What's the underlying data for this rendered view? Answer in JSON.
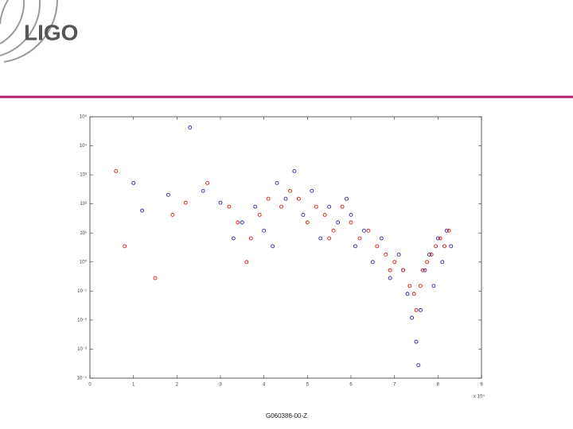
{
  "header": {
    "logo": "LIGO"
  },
  "footer": {
    "text": "G060386-00-Z"
  },
  "chart_data": {
    "type": "scatter",
    "x_multiplier_label": "x 10⁴",
    "xlim": [
      0,
      9
    ],
    "xticks": [
      0,
      1,
      2,
      3,
      4,
      5,
      6,
      7,
      8,
      9
    ],
    "ylim": [
      0.0001,
      100000
    ],
    "log_y": true,
    "yticks": [
      {
        "value": 0.0001,
        "label": "10⁻⁴"
      },
      {
        "value": 0.001,
        "label": "10⁻³"
      },
      {
        "value": 0.01,
        "label": "10⁻²"
      },
      {
        "value": 0.1,
        "label": "10⁻¹"
      },
      {
        "value": 1,
        "label": "10⁰"
      },
      {
        "value": 10,
        "label": "10¹"
      },
      {
        "value": 100,
        "label": "10²"
      },
      {
        "value": 1000,
        "label": "10³"
      },
      {
        "value": 10000,
        "label": "10⁴"
      },
      {
        "value": 100000,
        "label": "10⁵"
      }
    ],
    "series": [
      {
        "name": "blue",
        "color": "#2a2aa0",
        "x": [
          1.0,
          1.2,
          1.8,
          2.3,
          2.6,
          3.0,
          3.3,
          3.5,
          3.8,
          4.0,
          4.3,
          4.5,
          4.7,
          4.9,
          5.1,
          5.3,
          5.5,
          5.7,
          5.9,
          6.1,
          6.3,
          6.5,
          6.7,
          6.9,
          7.1,
          7.3,
          7.4,
          7.5,
          7.55,
          7.6,
          7.7,
          7.8,
          7.9,
          8.0,
          8.1,
          8.2,
          8.3,
          7.2,
          6.0,
          4.2
        ],
        "values": [
          525,
          59,
          205,
          43000,
          280,
          110,
          6.5,
          23,
          80,
          12,
          525,
          150,
          1350,
          42,
          280,
          6.5,
          80,
          23,
          150,
          3.5,
          12,
          1,
          6.5,
          0.28,
          1.8,
          0.08,
          0.012,
          0.0018,
          0.00028,
          0.022,
          0.52,
          1.8,
          0.15,
          6.5,
          1,
          12,
          3.5,
          0.52,
          42,
          3.5
        ]
      },
      {
        "name": "red",
        "color": "#e01818",
        "x": [
          0.6,
          0.8,
          1.5,
          1.9,
          2.2,
          2.7,
          3.2,
          3.4,
          3.7,
          3.9,
          4.1,
          4.4,
          4.6,
          4.8,
          5.0,
          5.2,
          5.4,
          5.6,
          5.8,
          6.0,
          6.2,
          6.4,
          6.6,
          6.8,
          7.0,
          7.2,
          7.35,
          7.45,
          7.5,
          7.6,
          7.65,
          7.75,
          7.85,
          7.95,
          8.05,
          8.15,
          8.25,
          6.9,
          5.5,
          3.6
        ],
        "values": [
          1350,
          3.5,
          0.28,
          42,
          110,
          525,
          80,
          23,
          6.5,
          42,
          150,
          80,
          280,
          150,
          23,
          80,
          42,
          12,
          80,
          23,
          6.5,
          12,
          3.5,
          1.8,
          1,
          0.52,
          0.15,
          0.08,
          0.022,
          0.15,
          0.52,
          1,
          1.8,
          3.5,
          6.5,
          3.5,
          12,
          0.52,
          6.5,
          1
        ]
      }
    ]
  }
}
